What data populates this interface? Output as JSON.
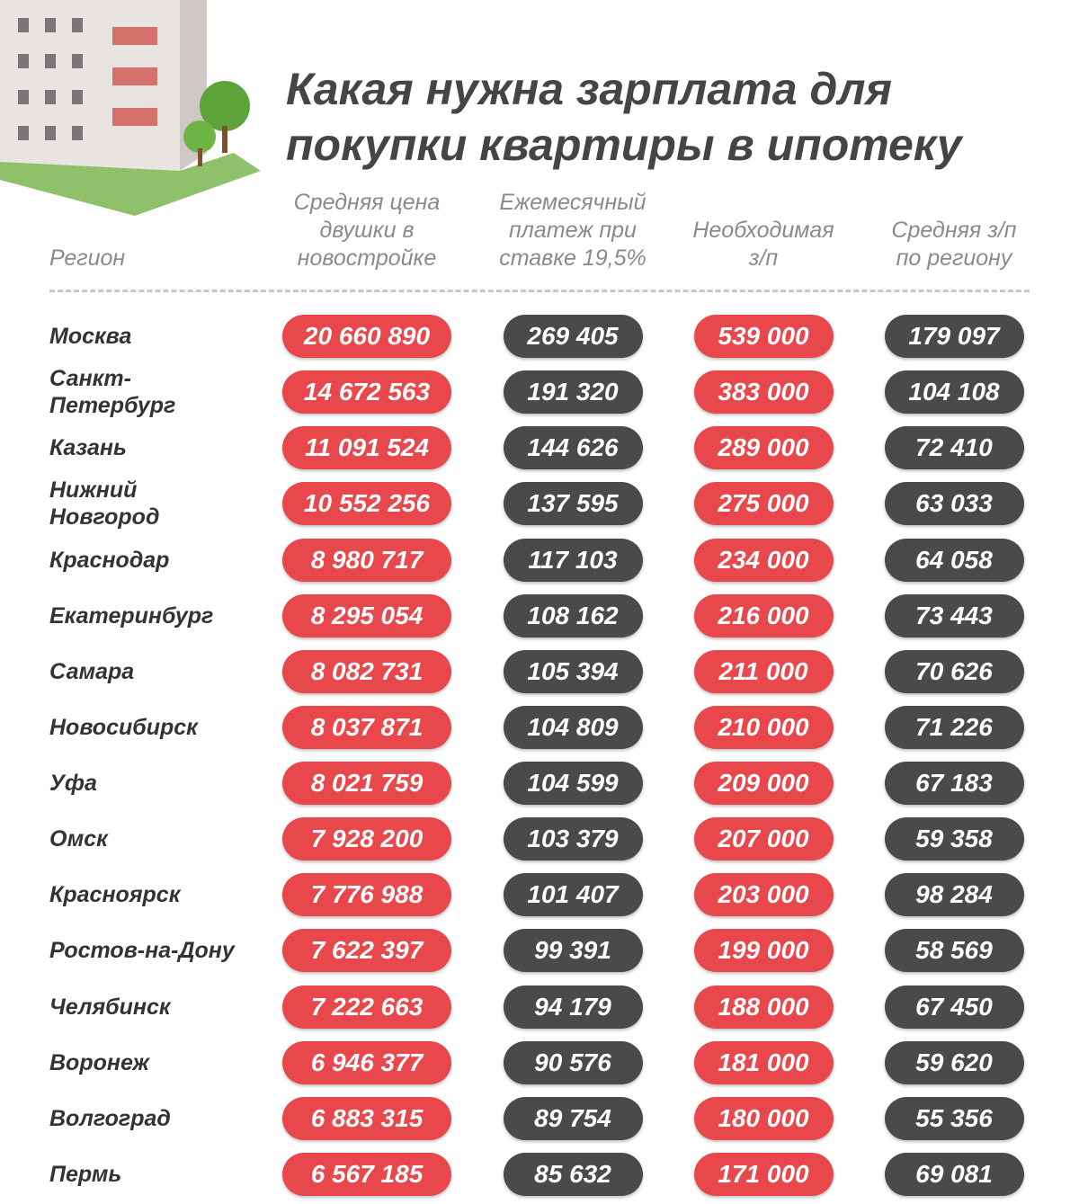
{
  "header": {
    "title": [
      "Какая нужна зарплата для",
      "покупки квартиры в ипотеку"
    ]
  },
  "table": {
    "columns": [
      [
        "Регион"
      ],
      [
        "Средняя цена",
        "двушки в",
        "новостройке"
      ],
      [
        "Ежемесячный",
        "платеж при",
        "ставке 19,5%"
      ],
      [
        "Необходимая",
        "з/п"
      ],
      [
        "Средняя з/п",
        "по региону"
      ]
    ],
    "rows": [
      {
        "region": [
          "Москва"
        ],
        "cells": [
          "20 660 890",
          "269 405",
          "539 000",
          "179 097"
        ]
      },
      {
        "region": [
          "Санкт-",
          "Петербург"
        ],
        "cells": [
          "14 672 563",
          "191 320",
          "383 000",
          "104 108"
        ]
      },
      {
        "region": [
          "Казань"
        ],
        "cells": [
          "11 091 524",
          "144 626",
          "289 000",
          "72 410"
        ]
      },
      {
        "region": [
          "Нижний",
          "Новгород"
        ],
        "cells": [
          "10 552 256",
          "137 595",
          "275 000",
          "63 033"
        ]
      },
      {
        "region": [
          "Краснодар"
        ],
        "cells": [
          "8 980 717",
          "117 103",
          "234 000",
          "64 058"
        ]
      },
      {
        "region": [
          "Екатеринбург"
        ],
        "cells": [
          "8 295 054",
          "108 162",
          "216 000",
          "73 443"
        ]
      },
      {
        "region": [
          "Самара"
        ],
        "cells": [
          "8 082 731",
          "105 394",
          "211 000",
          "70 626"
        ]
      },
      {
        "region": [
          "Новосибирск"
        ],
        "cells": [
          "8 037 871",
          "104 809",
          "210 000",
          "71 226"
        ]
      },
      {
        "region": [
          "Уфа"
        ],
        "cells": [
          "8 021 759",
          "104 599",
          "209 000",
          "67 183"
        ]
      },
      {
        "region": [
          "Омск"
        ],
        "cells": [
          "7 928 200",
          "103 379",
          "207 000",
          "59 358"
        ]
      },
      {
        "region": [
          "Красноярск"
        ],
        "cells": [
          "7 776 988",
          "101 407",
          "203 000",
          "98 284"
        ]
      },
      {
        "region": [
          "Ростов-на-Дону"
        ],
        "cells": [
          "7 622 397",
          "99 391",
          "199 000",
          "58 569"
        ]
      },
      {
        "region": [
          "Челябинск"
        ],
        "cells": [
          "7 222 663",
          "94 179",
          "188 000",
          "67 450"
        ]
      },
      {
        "region": [
          "Воронеж"
        ],
        "cells": [
          "6 946 377",
          "90 576",
          "181 000",
          "59 620"
        ]
      },
      {
        "region": [
          "Волгоград"
        ],
        "cells": [
          "6 883 315",
          "89 754",
          "180 000",
          "55 356"
        ]
      },
      {
        "region": [
          "Пермь"
        ],
        "cells": [
          "6 567 185",
          "85 632",
          "171 000",
          "69 081"
        ]
      }
    ]
  }
}
